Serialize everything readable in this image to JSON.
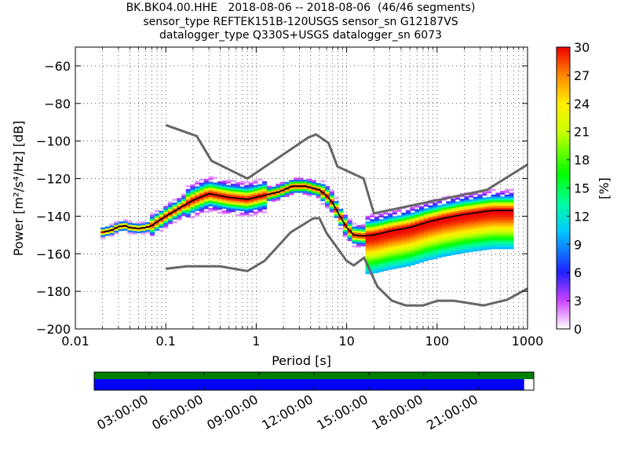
{
  "title_lines": [
    "BK.BK04.00.HHE   2018-08-06 -- 2018-08-06  (46/46 segments)",
    "sensor_type REFTEK151B-120USGS sensor_sn G12187VS",
    "datalogger_type Q330S+USGS datalogger_sn 6073"
  ],
  "chart_data": {
    "type": "heatmap",
    "xlabel": "Period [s]",
    "ylabel": "Power [m²/s⁴/Hz] [dB]",
    "xscale": "log",
    "xlim": [
      0.01,
      1000
    ],
    "ylim": [
      -200,
      -50
    ],
    "xtick_labels": [
      "0.01",
      "0.1",
      "1",
      "10",
      "100",
      "1000"
    ],
    "xtick_values": [
      0.01,
      0.1,
      1,
      10,
      100,
      1000
    ],
    "ytick_labels": [
      "−60",
      "−80",
      "−100",
      "−120",
      "−140",
      "−160",
      "−180",
      "−200"
    ],
    "ytick_values": [
      -60,
      -80,
      -100,
      -120,
      -140,
      -160,
      -180,
      -200
    ],
    "grid": true,
    "colorbar": {
      "label": "[%]",
      "min": 0,
      "max": 30,
      "tick_labels": [
        "0",
        "3",
        "6",
        "9",
        "12",
        "15",
        "18",
        "21",
        "24",
        "27",
        "30"
      ],
      "tick_values": [
        0,
        3,
        6,
        9,
        12,
        15,
        18,
        21,
        24,
        27,
        30
      ]
    },
    "series": [
      {
        "kind": "NHNM",
        "x": [
          0.1,
          0.22,
          0.32,
          0.8,
          3.8,
          4.6,
          6.3,
          7.9,
          15.4,
          20,
          354.8,
          1000
        ],
        "y": [
          -91.5,
          -97.4,
          -110.5,
          -120,
          -98,
          -96.5,
          -101,
          -113.5,
          -120,
          -138.5,
          -126,
          -112.5
        ]
      },
      {
        "kind": "NLNM",
        "x": [
          0.1,
          0.17,
          0.4,
          0.8,
          1.24,
          2.4,
          4.3,
          5,
          6,
          10,
          12,
          15.6,
          21.9,
          31.6,
          45,
          70,
          101,
          154,
          328,
          600,
          1000
        ],
        "y": [
          -168,
          -166.7,
          -166.7,
          -169.2,
          -163.7,
          -148.6,
          -141.1,
          -141.1,
          -149,
          -163.8,
          -166.2,
          -162.1,
          -177.5,
          -185,
          -187.5,
          -187.5,
          -185,
          -185,
          -187.5,
          -184.4,
          -178.5
        ]
      },
      {
        "kind": "mode",
        "x": [
          0.02,
          0.025,
          0.03,
          0.035,
          0.04,
          0.05,
          0.06,
          0.07,
          0.08,
          0.1,
          0.15,
          0.2,
          0.3,
          0.5,
          0.8,
          1.2,
          1.8,
          2.5,
          3.5,
          5,
          6,
          7,
          8,
          10,
          12,
          15,
          20,
          30,
          50,
          80,
          120,
          200,
          400,
          700
        ],
        "y": [
          -148.5,
          -147.5,
          -145.5,
          -145,
          -146,
          -146.5,
          -146,
          -145,
          -143,
          -140,
          -135,
          -131.5,
          -128,
          -130,
          -131,
          -129,
          -127,
          -124,
          -124,
          -126,
          -129,
          -133,
          -138,
          -146,
          -150,
          -150.5,
          -150,
          -148,
          -146,
          -143,
          -141,
          -139,
          -137,
          -137
        ]
      }
    ]
  },
  "timeline": {
    "labels": [
      "03:00:00",
      "06:00:00",
      "09:00:00",
      "12:00:00",
      "15:00:00",
      "18:00:00",
      "21:00:00"
    ],
    "colors": {
      "data": "#0000ff",
      "gaps_header": "#008000"
    },
    "coverage_fraction": 0.978
  }
}
